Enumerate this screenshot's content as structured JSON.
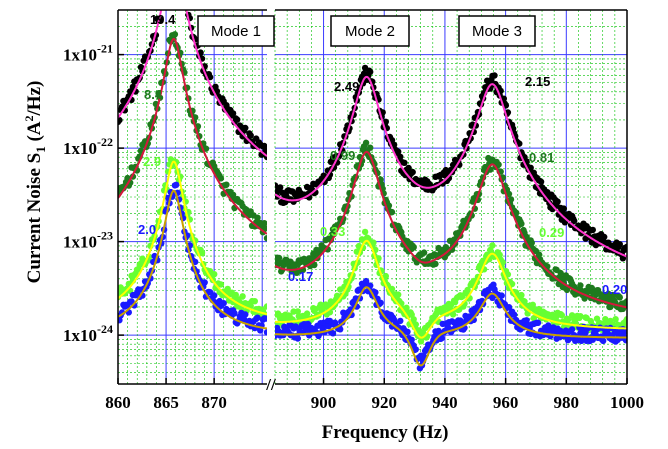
{
  "chart_data": {
    "type": "line",
    "title": "",
    "xlabel": "Frequency (Hz)",
    "ylabel": "Current Noise S",
    "ylabel_sub": "1",
    "ylabel_unit_prefix": " (A",
    "ylabel_unit_sup": "2",
    "ylabel_unit_suffix": "/Hz)",
    "yscale": "log",
    "ylim": [
      3e-25,
      3e-21
    ],
    "y_ticks": [
      {
        "label": "1x10",
        "exp": "-24",
        "value": 1e-24
      },
      {
        "label": "1x10",
        "exp": "-23",
        "value": 1e-23
      },
      {
        "label": "1x10",
        "exp": "-22",
        "value": 1e-22
      },
      {
        "label": "1x10",
        "exp": "-21",
        "value": 1e-21
      }
    ],
    "x_segments": [
      {
        "xlim": [
          860,
          875.5
        ],
        "ticks": [
          "860",
          "865",
          "870"
        ],
        "tick_values": [
          860,
          865,
          870
        ]
      },
      {
        "xlim": [
          884,
          1000
        ],
        "ticks": [
          "900",
          "920",
          "940",
          "960",
          "980",
          "1000"
        ],
        "tick_values": [
          900,
          920,
          940,
          960,
          980,
          1000
        ]
      }
    ],
    "axis_break": "//",
    "grid": true,
    "modes": [
      {
        "label": "Mode 1",
        "f0": 865.8,
        "gamma_hz": 0.8
      },
      {
        "label": "Mode 2",
        "f0": 914.2,
        "gamma_hz": 3.6
      },
      {
        "label": "Mode 3",
        "f0": 955.6,
        "gamma_hz": 4.2
      }
    ],
    "series": [
      {
        "color": "#000000",
        "fit_color": "#ff33cc",
        "baseline": 1.4e-24,
        "peaks": [
          1.2e-20,
          6.2e-22,
          5.2e-22
        ],
        "labels": [
          "19.4",
          "2.49",
          "2.15"
        ]
      },
      {
        "color": "#1e7a1e",
        "fit_color": "#d4183c",
        "baseline": 1.3e-24,
        "peaks": [
          1.6e-21,
          9.8e-23,
          7.2e-23
        ],
        "labels": [
          "8.4",
          "0.99",
          "0.81"
        ]
      },
      {
        "color": "#66ff33",
        "fit_color": "#ffff00",
        "baseline": 1.2e-24,
        "peaks": [
          7.8e-23,
          1.1e-23,
          8e-24
        ],
        "labels": [
          "2.9",
          "0.33",
          "0.29"
        ]
      },
      {
        "color": "#1a1aff",
        "fit_color": "#c8a000",
        "baseline": 1e-24,
        "peaks": [
          3.8e-23,
          3.5e-24,
          3e-24
        ],
        "labels": [
          "2.0",
          "0.17",
          "0.20"
        ]
      }
    ],
    "dip": {
      "f": 932,
      "value": 5e-25
    }
  }
}
